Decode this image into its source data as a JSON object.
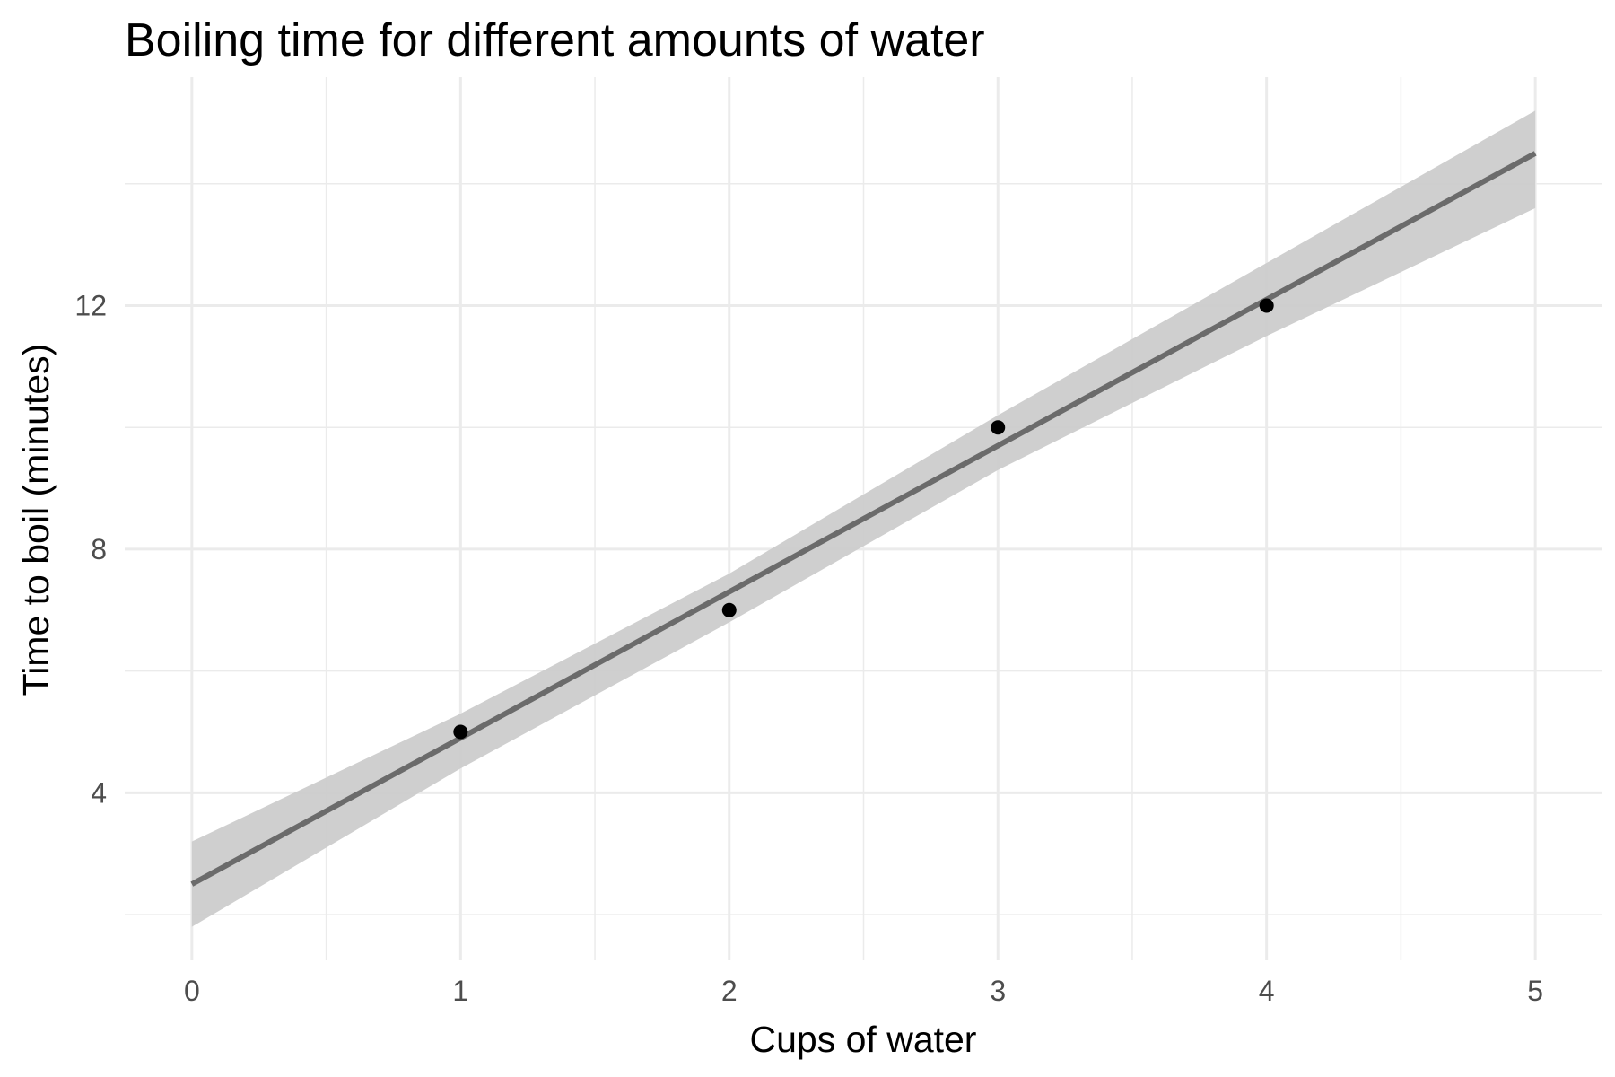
{
  "chart_data": {
    "type": "scatter",
    "title": "Boiling time for different amounts of water",
    "xlabel": "Cups of water",
    "ylabel": "Time to boil (minutes)",
    "xlim": [
      -0.25,
      5.25
    ],
    "ylim": [
      1.25,
      15.75
    ],
    "x_ticks": [
      0,
      1,
      2,
      3,
      4,
      5
    ],
    "x_tick_labels": [
      "0",
      "1",
      "2",
      "3",
      "4",
      "5"
    ],
    "x_minor_ticks": [
      0.5,
      1.5,
      2.5,
      3.5,
      4.5
    ],
    "y_ticks": [
      4,
      8,
      12
    ],
    "y_tick_labels": [
      "4",
      "8",
      "12"
    ],
    "y_minor_ticks": [
      2,
      6,
      10,
      14
    ],
    "grid": true,
    "legend": "none",
    "points": [
      {
        "x": 1,
        "y": 5
      },
      {
        "x": 2,
        "y": 7
      },
      {
        "x": 3,
        "y": 10
      },
      {
        "x": 4,
        "y": 12
      }
    ],
    "fit_line": {
      "x": [
        0,
        5
      ],
      "y": [
        2.5,
        14.5
      ]
    },
    "confidence_band": {
      "x": [
        0,
        1,
        2,
        3,
        4,
        5
      ],
      "lower": [
        1.8,
        4.4,
        6.8,
        9.3,
        11.5,
        13.6
      ],
      "upper": [
        3.2,
        5.3,
        7.6,
        10.2,
        12.7,
        15.2
      ]
    },
    "colors": {
      "background": "#ffffff",
      "grid_major": "#ebebeb",
      "grid_minor": "#ebebeb",
      "line": "#6b6b6b",
      "band": "#cccccc",
      "point": "#000000",
      "tick_text": "#4d4d4d",
      "title_text": "#000000"
    }
  }
}
